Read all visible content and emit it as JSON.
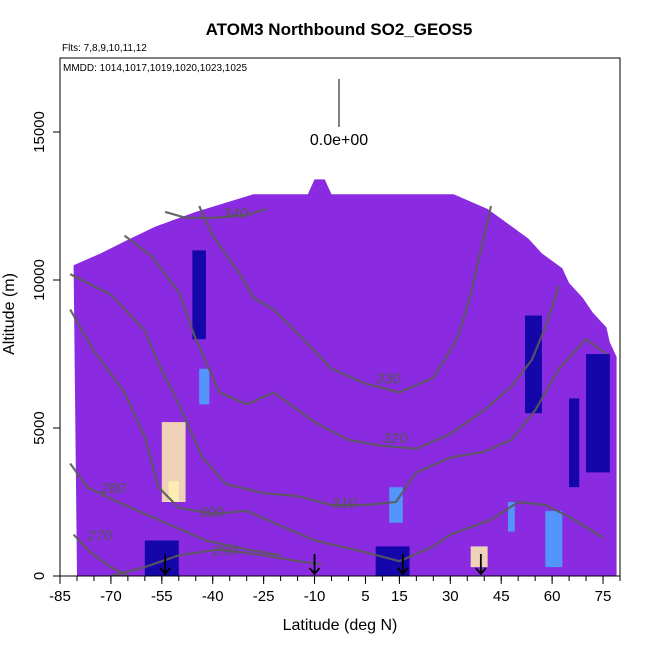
{
  "chart_data": {
    "type": "heatmap",
    "title": "ATOM3 Northbound SO2_GEOS5",
    "note_flights": "Flts: 7,8,9,10,11,12",
    "note_dates": "MMDD: 1014,1017,1019,1020,1023,1025",
    "xlabel": "Latitude (deg N)",
    "ylabel": "Altitude (m)",
    "xlim": [
      -85,
      80
    ],
    "ylim": [
      0,
      17500
    ],
    "xticks": [
      -85,
      -70,
      -55,
      -40,
      -25,
      -10,
      5,
      15,
      30,
      45,
      60,
      75
    ],
    "yticks": [
      0,
      5000,
      10000,
      15000
    ],
    "legend_value": "0.0e+00",
    "colors": {
      "background": "#8a2be2",
      "low": "#0000a0",
      "mid": "#4aa8ff",
      "high": "#fff1b0",
      "contour": "#5a5a5a"
    },
    "profile_arrows_lat": [
      -54,
      -10,
      16,
      39
    ],
    "domain_top": [
      [
        -81,
        10500
      ],
      [
        -73,
        10900
      ],
      [
        -66,
        11300
      ],
      [
        -57,
        11800
      ],
      [
        -45,
        12300
      ],
      [
        -28,
        12900
      ],
      [
        -12,
        12900
      ],
      [
        -10,
        13400
      ],
      [
        -7,
        13400
      ],
      [
        -5,
        12900
      ],
      [
        16,
        12900
      ],
      [
        31,
        12900
      ],
      [
        41,
        12400
      ],
      [
        47,
        11900
      ],
      [
        53,
        11400
      ],
      [
        57,
        10900
      ],
      [
        63,
        10400
      ],
      [
        65,
        9900
      ],
      [
        69,
        9400
      ],
      [
        72,
        8900
      ],
      [
        76,
        8400
      ],
      [
        77,
        7900
      ],
      [
        79,
        7400
      ],
      [
        79,
        0
      ],
      [
        -80,
        0
      ]
    ],
    "features": [
      {
        "x0": -46,
        "x1": -42,
        "y0": 8000,
        "y1": 11000,
        "level": 0.25
      },
      {
        "x0": -44,
        "x1": -41,
        "y0": 5800,
        "y1": 7000,
        "level": 0.65
      },
      {
        "x0": -55,
        "x1": -48,
        "y0": 2500,
        "y1": 5200,
        "level": 0.75
      },
      {
        "x0": -53,
        "x1": -50,
        "y0": 2500,
        "y1": 3200,
        "level": 0.95
      },
      {
        "x0": 12,
        "x1": 16,
        "y0": 1800,
        "y1": 3000,
        "level": 0.65
      },
      {
        "x0": 36,
        "x1": 41,
        "y0": 300,
        "y1": 1000,
        "level": 0.95
      },
      {
        "x0": 52,
        "x1": 57,
        "y0": 5500,
        "y1": 8800,
        "level": 0.3
      },
      {
        "x0": 47,
        "x1": 49,
        "y0": 1500,
        "y1": 2500,
        "level": 0.7
      },
      {
        "x0": 58,
        "x1": 63,
        "y0": 300,
        "y1": 2200,
        "level": 0.6
      },
      {
        "x0": 65,
        "x1": 68,
        "y0": 3000,
        "y1": 6000,
        "level": 0.3
      },
      {
        "x0": -60,
        "x1": -50,
        "y0": 0,
        "y1": 1200,
        "level": 0.2
      },
      {
        "x0": 8,
        "x1": 18,
        "y0": 0,
        "y1": 1000,
        "level": 0.25
      },
      {
        "x0": 70,
        "x1": 77,
        "y0": 3500,
        "y1": 7500,
        "level": 0.2
      }
    ],
    "contours": [
      {
        "label": "270",
        "label_x": -77,
        "label_y": 1200,
        "points": [
          [
            -81,
            1400
          ],
          [
            -76,
            800
          ],
          [
            -70,
            300
          ],
          [
            -65,
            0
          ]
        ]
      },
      {
        "label": "280",
        "label_x": -73,
        "label_y": 2800,
        "points": [
          [
            -82,
            3800
          ],
          [
            -77,
            3000
          ],
          [
            -68,
            2500
          ],
          [
            -58,
            2000
          ],
          [
            -50,
            1600
          ],
          [
            -42,
            1200
          ],
          [
            -30,
            900
          ],
          [
            -20,
            700
          ]
        ]
      },
      {
        "label": "290",
        "label_x": -40,
        "label_y": 700,
        "points": [
          [
            -70,
            0
          ],
          [
            -60,
            300
          ],
          [
            -50,
            700
          ],
          [
            -38,
            900
          ],
          [
            -25,
            700
          ],
          [
            -15,
            500
          ],
          [
            -8,
            400
          ]
        ]
      },
      {
        "label": "300",
        "label_x": -44,
        "label_y": 2000,
        "points": [
          [
            -82,
            9000
          ],
          [
            -75,
            7600
          ],
          [
            -66,
            6200
          ],
          [
            -60,
            4700
          ],
          [
            -56,
            3000
          ],
          [
            -50,
            2300
          ],
          [
            -40,
            2100
          ],
          [
            -30,
            2200
          ],
          [
            -20,
            1700
          ],
          [
            -10,
            1200
          ],
          [
            5,
            800
          ],
          [
            15,
            500
          ],
          [
            25,
            1000
          ],
          [
            30,
            1400
          ],
          [
            42,
            1900
          ],
          [
            50,
            2500
          ],
          [
            58,
            2400
          ],
          [
            65,
            2000
          ],
          [
            75,
            1300
          ]
        ]
      },
      {
        "label": "310",
        "label_x": -5,
        "label_y": 2300,
        "points": [
          [
            -82,
            10200
          ],
          [
            -70,
            9500
          ],
          [
            -60,
            8300
          ],
          [
            -56,
            7200
          ],
          [
            -50,
            5800
          ],
          [
            -43,
            4000
          ],
          [
            -36,
            3100
          ],
          [
            -25,
            2800
          ],
          [
            -15,
            2700
          ],
          [
            -5,
            2400
          ],
          [
            5,
            2400
          ],
          [
            14,
            2500
          ],
          [
            20,
            3500
          ],
          [
            30,
            4000
          ],
          [
            40,
            4200
          ],
          [
            48,
            4600
          ],
          [
            55,
            5600
          ],
          [
            62,
            7000
          ],
          [
            70,
            8000
          ],
          [
            76,
            7500
          ]
        ]
      },
      {
        "label": "320",
        "label_x": 10,
        "label_y": 4500,
        "points": [
          [
            -66,
            11500
          ],
          [
            -58,
            10800
          ],
          [
            -50,
            9600
          ],
          [
            -45,
            8000
          ],
          [
            -38,
            6200
          ],
          [
            -30,
            5800
          ],
          [
            -22,
            6200
          ],
          [
            -10,
            5200
          ],
          [
            0,
            4600
          ],
          [
            10,
            4400
          ],
          [
            20,
            4300
          ],
          [
            30,
            4800
          ],
          [
            40,
            5600
          ],
          [
            48,
            6400
          ],
          [
            54,
            7300
          ],
          [
            58,
            8400
          ],
          [
            62,
            9800
          ]
        ]
      },
      {
        "label": "330",
        "label_x": 8,
        "label_y": 6500,
        "points": [
          [
            -44,
            12500
          ],
          [
            -40,
            11500
          ],
          [
            -32,
            10200
          ],
          [
            -28,
            9400
          ],
          [
            -22,
            9000
          ],
          [
            -15,
            8200
          ],
          [
            -5,
            7000
          ],
          [
            5,
            6500
          ],
          [
            15,
            6200
          ],
          [
            25,
            6700
          ],
          [
            32,
            8000
          ],
          [
            36,
            9500
          ],
          [
            39,
            11000
          ],
          [
            42,
            12500
          ]
        ]
      },
      {
        "label": "340",
        "label_x": -37,
        "label_y": 12100,
        "points": [
          [
            -54,
            12300
          ],
          [
            -48,
            12100
          ],
          [
            -40,
            12100
          ],
          [
            -30,
            12200
          ],
          [
            -24,
            12400
          ]
        ]
      }
    ]
  }
}
